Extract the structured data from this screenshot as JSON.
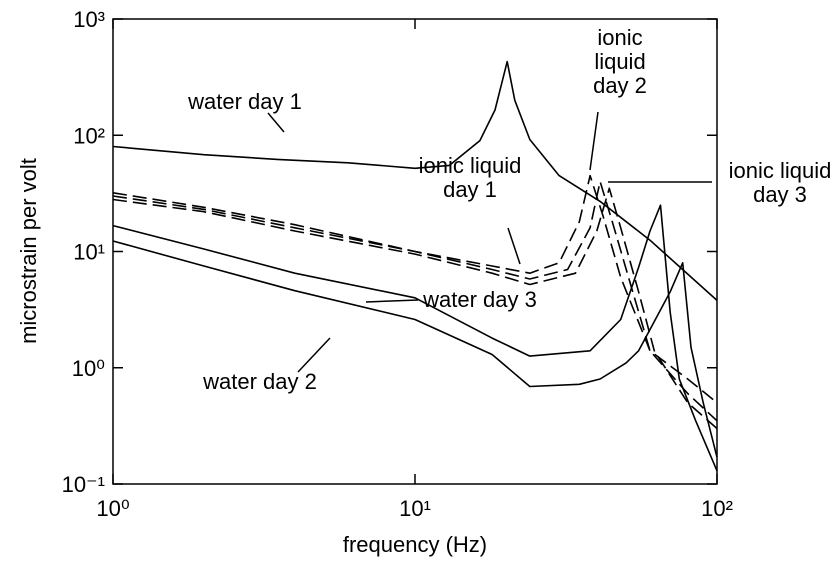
{
  "chart_data": {
    "type": "line",
    "xlabel": "frequency (Hz)",
    "ylabel": "microstrain per volt",
    "xscale": "log",
    "yscale": "log",
    "xlim": [
      1,
      100
    ],
    "ylim": [
      0.1,
      1000
    ],
    "xticks": [
      {
        "value": 1,
        "label": "10⁰"
      },
      {
        "value": 10,
        "label": "10¹"
      },
      {
        "value": 100,
        "label": "10²"
      }
    ],
    "yticks": [
      {
        "value": 0.1,
        "label": "10⁻¹"
      },
      {
        "value": 1,
        "label": "10⁰"
      },
      {
        "value": 10,
        "label": "10¹"
      },
      {
        "value": 100,
        "label": "10²"
      },
      {
        "value": 1000,
        "label": "10³"
      }
    ],
    "grid": false,
    "legend": false,
    "series": [
      {
        "name": "water day 1",
        "color": "#000000",
        "line_style": "solid",
        "x": [
          1,
          2,
          3.5,
          6,
          10,
          13,
          16.4,
          18.4,
          20.2,
          21.4,
          24,
          30,
          41,
          60,
          100
        ],
        "values": [
          80,
          68,
          62,
          58,
          52,
          55,
          90,
          165,
          430,
          200,
          92,
          45,
          27,
          12.5,
          3.8
        ]
      },
      {
        "name": "water day 2",
        "color": "#000000",
        "line_style": "solid",
        "x": [
          1,
          2,
          4,
          10,
          18,
          24,
          35,
          41,
          50,
          55,
          62,
          70,
          77,
          82,
          90,
          100
        ],
        "values": [
          12.3,
          7.5,
          4.6,
          2.6,
          1.3,
          0.69,
          0.72,
          0.8,
          1.1,
          1.4,
          2.5,
          4.5,
          8,
          1.5,
          0.5,
          0.17
        ]
      },
      {
        "name": "water day 3",
        "color": "#000000",
        "line_style": "solid",
        "x": [
          1,
          2,
          4,
          10,
          18,
          24,
          38,
          48,
          55,
          60,
          65,
          70,
          75,
          85,
          100
        ],
        "values": [
          16.7,
          10.5,
          6.5,
          4.0,
          1.8,
          1.26,
          1.4,
          2.6,
          7.3,
          15,
          25,
          3,
          0.8,
          0.35,
          0.13
        ]
      },
      {
        "name": "ionic liquid day 1",
        "color": "#000000",
        "line_style": "dashed",
        "x": [
          1,
          2,
          4,
          10,
          18,
          24,
          30,
          35,
          38,
          42,
          48,
          60,
          80,
          100
        ],
        "values": [
          32,
          24,
          17,
          10,
          7.5,
          6.5,
          8,
          18,
          45,
          20,
          6,
          1.4,
          0.8,
          0.5
        ]
      },
      {
        "name": "ionic liquid day 2",
        "color": "#000000",
        "line_style": "dashed",
        "x": [
          1,
          2,
          4,
          10,
          18,
          24,
          32,
          38,
          41,
          45,
          52,
          60,
          80,
          100
        ],
        "values": [
          30,
          23,
          16,
          10,
          7,
          5.8,
          7,
          16,
          40,
          18,
          5,
          1.4,
          0.6,
          0.35
        ]
      },
      {
        "name": "ionic liquid day 3",
        "color": "#000000",
        "line_style": "dashed",
        "x": [
          1,
          2,
          4,
          10,
          18,
          24,
          34,
          40,
          44,
          48,
          55,
          62,
          80,
          100
        ],
        "values": [
          28,
          22,
          15,
          9.5,
          6.5,
          5.2,
          6.5,
          15,
          35,
          16,
          4.5,
          1.4,
          0.5,
          0.3
        ]
      }
    ]
  }
}
